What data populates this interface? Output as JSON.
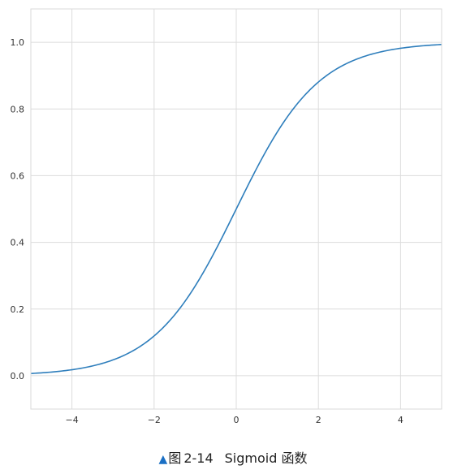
{
  "caption": {
    "marker": "▲",
    "prefix": "图",
    "number": "2-14",
    "text": "Sigmoid 函数"
  },
  "chart_data": {
    "type": "line",
    "title": "",
    "xlabel": "",
    "ylabel": "",
    "xlim": [
      -5,
      5
    ],
    "ylim": [
      -0.1,
      1.1
    ],
    "x_ticks": [
      -4,
      -2,
      0,
      2,
      4
    ],
    "x_tick_labels": [
      "−4",
      "−2",
      "0",
      "2",
      "4"
    ],
    "y_ticks": [
      0.0,
      0.2,
      0.4,
      0.6,
      0.8,
      1.0
    ],
    "y_tick_labels": [
      "0.0",
      "0.2",
      "0.4",
      "0.6",
      "0.8",
      "1.0"
    ],
    "grid": true,
    "legend": "none",
    "series": [
      {
        "color": "#2e7ebc",
        "function": "1 / (1 + exp(-x))",
        "x": [
          -5,
          -4.5,
          -4,
          -3.5,
          -3,
          -2.5,
          -2,
          -1.5,
          -1,
          -0.5,
          0,
          0.5,
          1,
          1.5,
          2,
          2.5,
          3,
          3.5,
          4,
          4.5,
          5
        ],
        "y": [
          0.0067,
          0.011,
          0.018,
          0.0293,
          0.0474,
          0.0759,
          0.1192,
          0.1824,
          0.2689,
          0.3775,
          0.5,
          0.6225,
          0.7311,
          0.8176,
          0.8808,
          0.9241,
          0.9526,
          0.9707,
          0.982,
          0.989,
          0.9933
        ]
      }
    ]
  }
}
